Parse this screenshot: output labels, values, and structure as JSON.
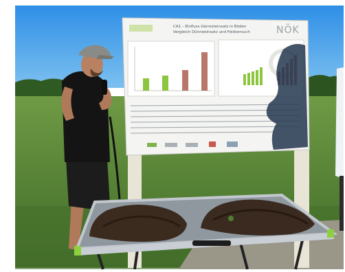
{
  "poster": {
    "logo_text": "NÖK",
    "title_line1": "CA1 – Einfluss Gärresteinsatz in Böden",
    "title_line2": "Vergleich Dünneeinsatz und Feldversuch"
  },
  "colors": {
    "sky": "#3f9be6",
    "grass": "#5d8a3a",
    "poster": "#f4f4f2",
    "bar_green": "#8cc63f",
    "bar_brown": "#b9776a",
    "table_frame": "#b8c0c8",
    "soil": "#3b2a1e"
  }
}
